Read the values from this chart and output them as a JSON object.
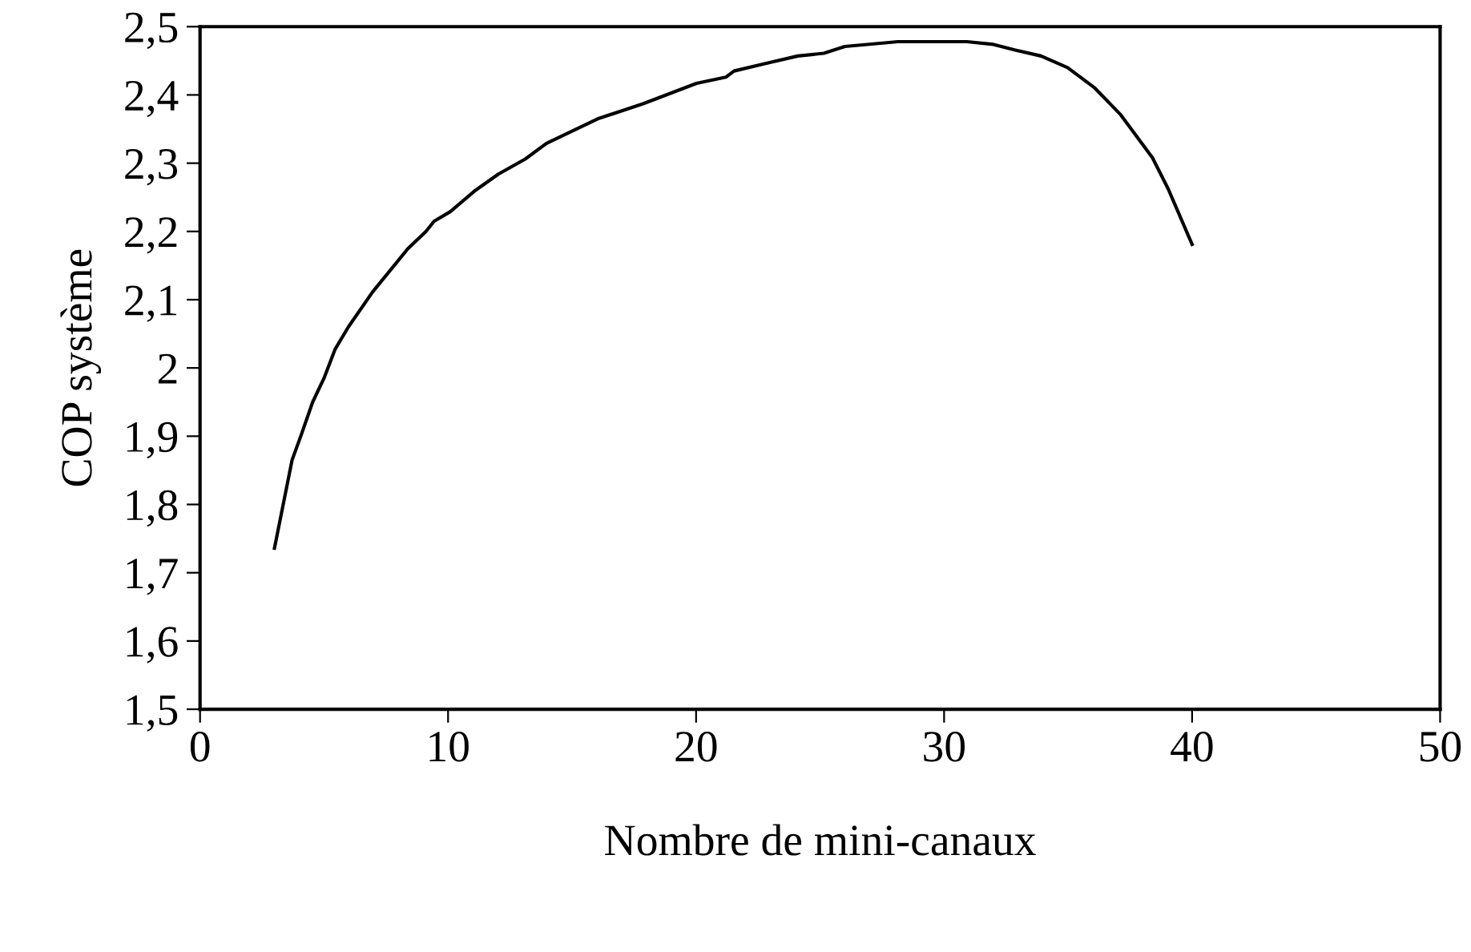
{
  "chart_data": {
    "type": "line",
    "xlabel": "Nombre de mini-canaux",
    "ylabel": "COP système",
    "series": [
      {
        "color": "#000000",
        "x": [
          3.0,
          3.71,
          4.08,
          4.54,
          5.01,
          5.44,
          5.98,
          6.95,
          8.36,
          9.11,
          9.44,
          10.09,
          11.06,
          12.03,
          13.11,
          13.97,
          16.03,
          17.86,
          20.02,
          21.2,
          21.53,
          22.8,
          24.1,
          25.15,
          26.0,
          28.14,
          30.92,
          31.99,
          32.84,
          33.91,
          34.98,
          36.05,
          37.12,
          38.4,
          39.04,
          40.0
        ],
        "values": [
          1.736,
          1.865,
          1.902,
          1.95,
          1.986,
          2.027,
          2.06,
          2.111,
          2.174,
          2.2,
          2.215,
          2.229,
          2.259,
          2.284,
          2.306,
          2.329,
          2.365,
          2.387,
          2.417,
          2.426,
          2.435,
          2.446,
          2.457,
          2.461,
          2.471,
          2.478,
          2.478,
          2.474,
          2.466,
          2.457,
          2.44,
          2.411,
          2.371,
          2.308,
          2.262,
          2.181
        ]
      }
    ],
    "xlim": [
      0,
      50
    ],
    "xticks": [
      0,
      10,
      20,
      30,
      40,
      50
    ],
    "ylim": [
      1.5,
      2.5
    ],
    "yticks": [
      {
        "value": 1.5,
        "label": "1,5"
      },
      {
        "value": 1.6,
        "label": "1,6"
      },
      {
        "value": 1.7,
        "label": "1,7"
      },
      {
        "value": 1.8,
        "label": "1,8"
      },
      {
        "value": 1.9,
        "label": "1,9"
      },
      2,
      {
        "value": 2.1,
        "label": "2,1"
      },
      {
        "value": 2.2,
        "label": "2,2"
      },
      {
        "value": 2.3,
        "label": "2,3"
      },
      {
        "value": 2.4,
        "label": "2,4"
      },
      {
        "value": 2.5,
        "label": "2,5"
      }
    ],
    "grid": false,
    "marker": "none",
    "line_style": "solid"
  }
}
